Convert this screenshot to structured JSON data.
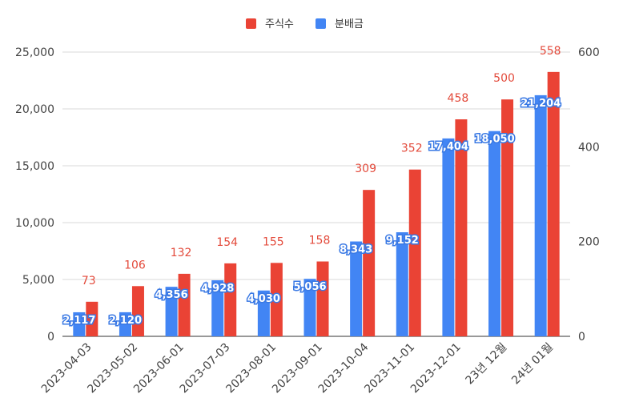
{
  "chart_data": {
    "type": "bar",
    "categories": [
      "2023-04-03",
      "2023-05-02",
      "2023-06-01",
      "2023-07-03",
      "2023-08-01",
      "2023-09-01",
      "2023-10-04",
      "2023-11-01",
      "2023-12-01",
      "23년 12월",
      "24년 01월"
    ],
    "series": [
      {
        "name": "분배금",
        "axis": "left",
        "color": "#4285f4",
        "values": [
          2117,
          2120,
          4356,
          4928,
          4030,
          5056,
          8343,
          9152,
          17404,
          18050,
          21204
        ],
        "labels": [
          "2,117",
          "2,120",
          "4,356",
          "4,928",
          "4,030",
          "5,056",
          "8,343",
          "9,152",
          "17,404",
          "18,050",
          "21,204"
        ]
      },
      {
        "name": "주식수",
        "axis": "right",
        "color": "#ea4335",
        "values": [
          73,
          106,
          132,
          154,
          155,
          158,
          309,
          352,
          458,
          500,
          558
        ],
        "labels": [
          "73",
          "106",
          "132",
          "154",
          "155",
          "158",
          "309",
          "352",
          "458",
          "500",
          "558"
        ]
      }
    ],
    "legend": {
      "placement": "top-center",
      "order": [
        "주식수",
        "분배금"
      ]
    },
    "y_left": {
      "ylim": [
        0,
        25000
      ],
      "ticks": [
        0,
        5000,
        10000,
        15000,
        20000,
        25000
      ],
      "tick_labels": [
        "0",
        "5,000",
        "10,000",
        "15,000",
        "20,000",
        "25,000"
      ]
    },
    "y_right": {
      "ylim": [
        0,
        600
      ],
      "ticks": [
        0,
        200,
        400,
        600
      ],
      "tick_labels": [
        "0",
        "200",
        "400",
        "600"
      ]
    },
    "grid": true
  }
}
